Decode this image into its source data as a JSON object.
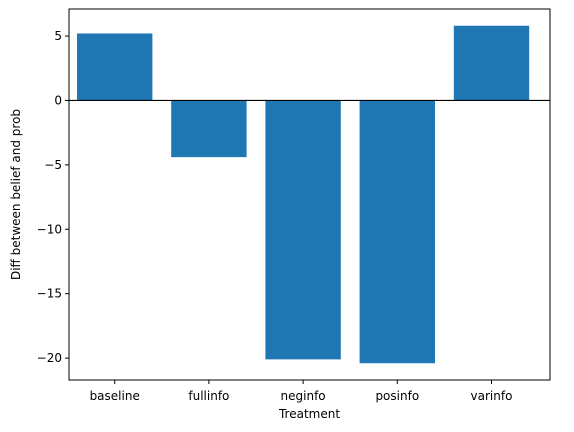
{
  "chart_data": {
    "type": "bar",
    "title": "",
    "xlabel": "Treatment",
    "ylabel": "Diff between belief and prob",
    "categories": [
      "baseline",
      "fullinfo",
      "neginfo",
      "posinfo",
      "varinfo"
    ],
    "values": [
      5.2,
      -4.4,
      -20.1,
      -20.4,
      5.8
    ],
    "ylim": [
      -21.7,
      7.1
    ],
    "yticks": [
      5,
      0,
      -5,
      -10,
      -15,
      -20
    ],
    "ytick_labels": [
      "5",
      "0",
      "−5",
      "−10",
      "−15",
      "−20"
    ],
    "zero_line": true,
    "grid": false,
    "bar_color": "#1f77b4"
  }
}
